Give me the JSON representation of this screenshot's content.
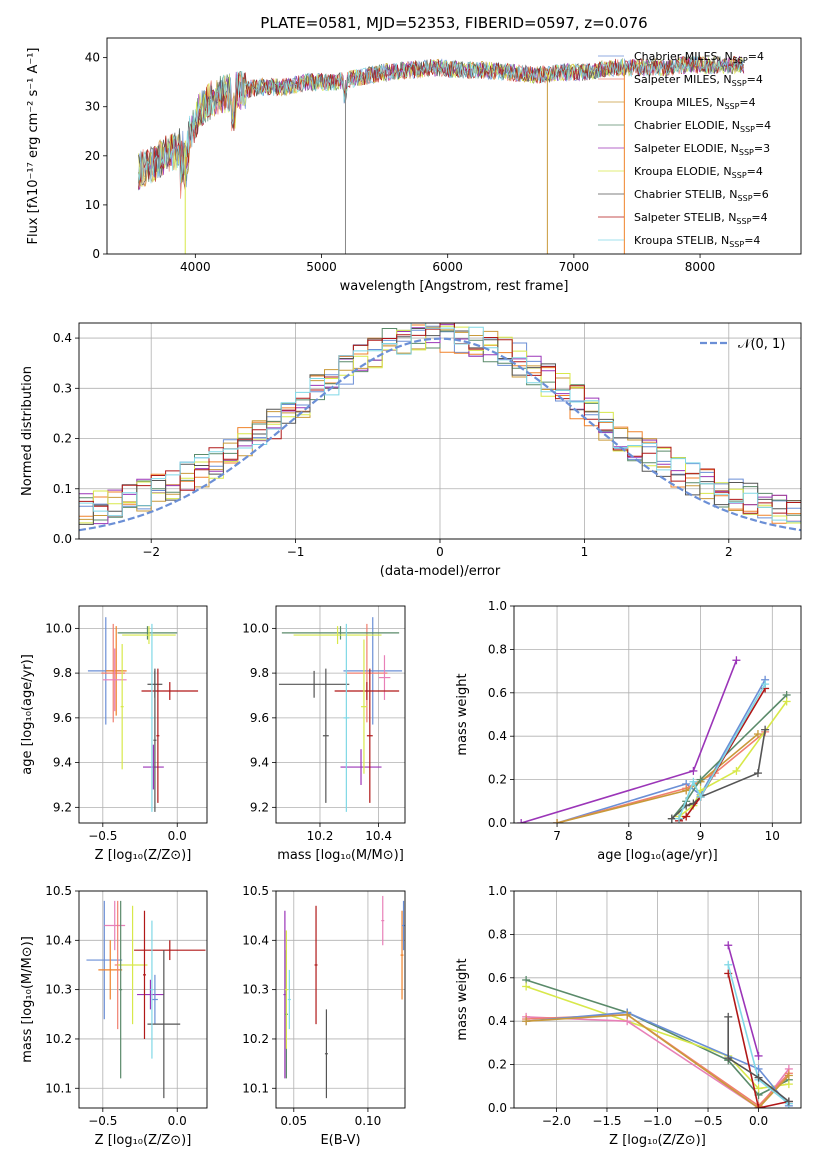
{
  "colors": {
    "Chabrier MILES": "#6b8fd6",
    "Salpeter MILES": "#f07f6f",
    "Kroupa MILES": "#c99a3a",
    "Chabrier ELODIE": "#5a8a6a",
    "Salpeter ELODIE": "#9b35b8",
    "Kroupa ELODIE": "#d8e84a",
    "Chabrier STELIB": "#555555",
    "Salpeter STELIB": "#b01818",
    "Kroupa STELIB": "#80d8e6",
    "normal_fit": "#6b8fd6",
    "orange_extra": "#f0822a",
    "pink_extra": "#e880b8"
  },
  "chart_data": [
    {
      "id": "spectrum",
      "type": "line",
      "title": "PLATE=0581, MJD=52353, FIBERID=0597, z=0.076",
      "xlabel": "wavelength [Angstrom, rest frame]",
      "ylabel": "Flux [fλ10⁻¹⁷ erg cm⁻² s⁻¹ A⁻¹]",
      "xlim": [
        3300,
        8800
      ],
      "ylim": [
        0,
        44
      ],
      "xticks": [
        "4000",
        "5000",
        "6000",
        "7000",
        "8000"
      ],
      "yticks": [
        "0",
        "10",
        "20",
        "30",
        "40"
      ],
      "grid": false,
      "legend_position": "top-right",
      "series": [
        {
          "name": "Chabrier MILES, N",
          "sub": "SSP",
          "suffix": "=4"
        },
        {
          "name": "Salpeter MILES, N",
          "sub": "SSP",
          "suffix": "=4"
        },
        {
          "name": "Kroupa MILES, N",
          "sub": "SSP",
          "suffix": "=4"
        },
        {
          "name": "Chabrier ELODIE, N",
          "sub": "SSP",
          "suffix": "=4"
        },
        {
          "name": "Salpeter ELODIE, N",
          "sub": "SSP",
          "suffix": "=3"
        },
        {
          "name": "Kroupa ELODIE, N",
          "sub": "SSP",
          "suffix": "=4"
        },
        {
          "name": "Chabrier STELIB, N",
          "sub": "SSP",
          "suffix": "=6"
        },
        {
          "name": "Salpeter STELIB, N",
          "sub": "SSP",
          "suffix": "=4"
        },
        {
          "name": "Kroupa STELIB, N",
          "sub": "SSP",
          "suffix": "=4"
        }
      ],
      "continuum": {
        "x": [
          3550,
          3650,
          3750,
          3850,
          3950,
          4050,
          4150,
          4300,
          4500,
          4700,
          4900,
          5100,
          5300,
          5500,
          5700,
          5900,
          6100,
          6300,
          6500,
          6700,
          6900,
          7100,
          7300,
          7500,
          7700,
          7900,
          8100,
          8300
        ],
        "y": [
          17,
          18,
          20,
          21,
          24,
          30,
          32,
          33,
          34,
          34,
          35,
          35,
          36,
          37,
          37.5,
          38,
          37.5,
          37.5,
          37,
          36.5,
          37,
          37,
          38,
          38,
          38,
          38.5,
          38.5,
          38.5
        ]
      },
      "spikes": [
        {
          "x": 3920,
          "y": 0,
          "color": "#d8e84a"
        },
        {
          "x": 5190,
          "y": 0,
          "color": "#888888"
        },
        {
          "x": 6790,
          "y": 0,
          "color": "#c99a3a"
        },
        {
          "x": 7400,
          "y": 0,
          "color": "#f0822a"
        }
      ]
    },
    {
      "id": "residuals",
      "type": "step",
      "xlabel": "(data-model)/error",
      "ylabel": "Normed distribution",
      "xlim": [
        -2.5,
        2.5
      ],
      "ylim": [
        0,
        0.43
      ],
      "xticks": [
        "−2",
        "−1",
        "0",
        "1",
        "2"
      ],
      "yticks": [
        "0.0",
        "0.1",
        "0.2",
        "0.3",
        "0.4"
      ],
      "grid": true,
      "legend_position": "top-right",
      "fit_label": "𝒩(0, 1)",
      "bin_width": 0.1
    },
    {
      "id": "age_vs_Z",
      "type": "errorbar",
      "xlabel": "Z [log₁₀(Z/Z⊙)]",
      "ylabel": "age  [log₁₀(age/yr)]",
      "xlim": [
        -0.66,
        0.2
      ],
      "ylim": [
        9.13,
        10.1
      ],
      "xticks": [
        "−0.5",
        "0.0"
      ],
      "yticks": [
        "9.2",
        "9.4",
        "9.6",
        "9.8",
        "10.0"
      ],
      "grid": true,
      "points": [
        {
          "x": -0.48,
          "y": 9.81,
          "xerr": 0.12,
          "yerr": 0.24,
          "c": "#6b8fd6"
        },
        {
          "x": -0.43,
          "y": 9.8,
          "xerr": 0.08,
          "yerr": 0.22,
          "c": "#f07f6f"
        },
        {
          "x": -0.41,
          "y": 9.81,
          "xerr": 0.07,
          "yerr": 0.2,
          "c": "#f0822a"
        },
        {
          "x": -0.42,
          "y": 9.77,
          "xerr": 0.08,
          "yerr": 0.14,
          "c": "#e880b8"
        },
        {
          "x": -0.2,
          "y": 9.98,
          "xerr": 0.2,
          "yerr": 0.03,
          "c": "#5a8a6a"
        },
        {
          "x": -0.19,
          "y": 9.97,
          "xerr": 0.18,
          "yerr": 0.04,
          "c": "#d8e84a"
        },
        {
          "x": -0.16,
          "y": 9.38,
          "xerr": 0.07,
          "yerr": 0.1,
          "c": "#9b35b8"
        },
        {
          "x": -0.15,
          "y": 9.75,
          "xerr": 0.05,
          "yerr": 0.06,
          "c": "#555555"
        },
        {
          "x": -0.05,
          "y": 9.72,
          "xerr": 0.19,
          "yerr": 0.04,
          "c": "#b01818"
        },
        {
          "x": -0.15,
          "y": 9.5,
          "xerr": 0.01,
          "yerr": 0.32,
          "c": "#555555"
        },
        {
          "x": -0.13,
          "y": 9.52,
          "xerr": 0.01,
          "yerr": 0.3,
          "c": "#b01818"
        },
        {
          "x": -0.17,
          "y": 9.6,
          "xerr": 0.01,
          "yerr": 0.42,
          "c": "#80d8e6"
        },
        {
          "x": -0.37,
          "y": 9.65,
          "xerr": 0.01,
          "yerr": 0.28,
          "c": "#d8e84a"
        }
      ]
    },
    {
      "id": "age_vs_mass",
      "type": "errorbar",
      "xlabel": "mass [log₁₀(M/M⊙)]",
      "ylabel": "",
      "xlim": [
        10.05,
        10.49
      ],
      "ylim": [
        9.13,
        10.1
      ],
      "xticks": [
        "10.2",
        "10.4"
      ],
      "yticks": [
        "9.2",
        "9.4",
        "9.6",
        "9.8",
        "10.0"
      ],
      "grid": true,
      "points": [
        {
          "x": 10.38,
          "y": 9.81,
          "xerr": 0.1,
          "yerr": 0.24,
          "c": "#6b8fd6"
        },
        {
          "x": 10.36,
          "y": 9.8,
          "xerr": 0.07,
          "yerr": 0.22,
          "c": "#f07f6f"
        },
        {
          "x": 10.42,
          "y": 9.78,
          "xerr": 0.02,
          "yerr": 0.1,
          "c": "#e880b8"
        },
        {
          "x": 10.27,
          "y": 9.98,
          "xerr": 0.2,
          "yerr": 0.03,
          "c": "#5a8a6a"
        },
        {
          "x": 10.26,
          "y": 9.97,
          "xerr": 0.15,
          "yerr": 0.04,
          "c": "#d8e84a"
        },
        {
          "x": 10.34,
          "y": 9.38,
          "xerr": 0.07,
          "yerr": 0.08,
          "c": "#9b35b8"
        },
        {
          "x": 10.18,
          "y": 9.75,
          "xerr": 0.12,
          "yerr": 0.06,
          "c": "#555555"
        },
        {
          "x": 10.36,
          "y": 9.72,
          "xerr": 0.11,
          "yerr": 0.04,
          "c": "#b01818"
        },
        {
          "x": 10.22,
          "y": 9.52,
          "xerr": 0.01,
          "yerr": 0.3,
          "c": "#555555"
        },
        {
          "x": 10.37,
          "y": 9.52,
          "xerr": 0.01,
          "yerr": 0.3,
          "c": "#b01818"
        },
        {
          "x": 10.29,
          "y": 9.6,
          "xerr": 0.01,
          "yerr": 0.42,
          "c": "#80d8e6"
        },
        {
          "x": 10.35,
          "y": 9.65,
          "xerr": 0.01,
          "yerr": 0.3,
          "c": "#d8e84a"
        }
      ]
    },
    {
      "id": "weight_vs_age",
      "type": "line",
      "xlabel": "age  [log₁₀(age/yr)]",
      "ylabel": "mass weight",
      "xlim": [
        6.4,
        10.4
      ],
      "ylim": [
        0,
        1
      ],
      "xticks": [
        "7",
        "8",
        "9",
        "10"
      ],
      "yticks": [
        "0.0",
        "0.2",
        "0.4",
        "0.6",
        "0.8",
        "1.0"
      ],
      "grid": true,
      "series": [
        {
          "c": "#6b8fd6",
          "x": [
            7.0,
            8.8,
            9.0,
            9.9
          ],
          "y": [
            0.0,
            0.18,
            0.13,
            0.66
          ]
        },
        {
          "c": "#f07f6f",
          "x": [
            7.0,
            8.8,
            9.2,
            9.9
          ],
          "y": [
            0.0,
            0.16,
            0.23,
            0.42
          ]
        },
        {
          "c": "#c99a3a",
          "x": [
            7.0,
            8.8,
            9.0,
            9.8
          ],
          "y": [
            0.0,
            0.15,
            0.19,
            0.41
          ]
        },
        {
          "c": "#9b35b8",
          "x": [
            6.5,
            8.9,
            9.5
          ],
          "y": [
            0.0,
            0.24,
            0.75
          ]
        },
        {
          "c": "#5a8a6a",
          "x": [
            8.6,
            8.8,
            9.0,
            10.2
          ],
          "y": [
            0.02,
            0.1,
            0.2,
            0.59
          ]
        },
        {
          "c": "#d8e84a",
          "x": [
            8.7,
            8.9,
            9.0,
            9.5,
            10.2
          ],
          "y": [
            0.03,
            0.08,
            0.15,
            0.24,
            0.56
          ]
        },
        {
          "c": "#555555",
          "x": [
            8.6,
            8.8,
            8.9,
            9.0,
            9.8,
            9.9
          ],
          "y": [
            0.02,
            0.08,
            0.09,
            0.12,
            0.23,
            0.43
          ]
        },
        {
          "c": "#b01818",
          "x": [
            8.7,
            8.8,
            9.0,
            9.9
          ],
          "y": [
            0.01,
            0.03,
            0.12,
            0.62
          ]
        },
        {
          "c": "#80d8e6",
          "x": [
            8.7,
            8.9,
            9.0,
            9.9
          ],
          "y": [
            0.02,
            0.19,
            0.12,
            0.64
          ]
        }
      ]
    },
    {
      "id": "mass_vs_Z",
      "type": "errorbar",
      "xlabel": "Z [log₁₀(Z/Z⊙)]",
      "ylabel": "mass [log₁₀(M/M⊙)]",
      "xlim": [
        -0.66,
        0.2
      ],
      "ylim": [
        10.06,
        10.5
      ],
      "xticks": [
        "−0.5",
        "0.0"
      ],
      "yticks": [
        "10.1",
        "10.2",
        "10.3",
        "10.4",
        "10.5"
      ],
      "grid": true,
      "points": [
        {
          "x": -0.49,
          "y": 10.36,
          "xerr": 0.12,
          "yerr": 0.12,
          "c": "#6b8fd6"
        },
        {
          "x": -0.45,
          "y": 10.34,
          "xerr": 0.08,
          "yerr": 0.06,
          "c": "#f0822a"
        },
        {
          "x": -0.42,
          "y": 10.43,
          "xerr": 0.07,
          "yerr": 0.05,
          "c": "#e880b8"
        },
        {
          "x": -0.4,
          "y": 10.35,
          "xerr": 0.02,
          "yerr": 0.13,
          "c": "#f07f6f"
        },
        {
          "x": -0.3,
          "y": 10.35,
          "xerr": 0.1,
          "yerr": 0.12,
          "c": "#d8e84a"
        },
        {
          "x": -0.38,
          "y": 10.3,
          "xerr": 0.01,
          "yerr": 0.18,
          "c": "#5a8a6a"
        },
        {
          "x": -0.18,
          "y": 10.29,
          "xerr": 0.09,
          "yerr": 0.03,
          "c": "#9b35b8"
        },
        {
          "x": -0.15,
          "y": 10.28,
          "xerr": 0.02,
          "yerr": 0.05,
          "c": "#6b8fd6"
        },
        {
          "x": -0.05,
          "y": 10.38,
          "xerr": 0.24,
          "yerr": 0.02,
          "c": "#b01818"
        },
        {
          "x": -0.09,
          "y": 10.23,
          "xerr": 0.11,
          "yerr": 0.15,
          "c": "#555555"
        },
        {
          "x": -0.22,
          "y": 10.33,
          "xerr": 0.01,
          "yerr": 0.13,
          "c": "#b01818"
        },
        {
          "x": -0.17,
          "y": 10.3,
          "xerr": 0.01,
          "yerr": 0.14,
          "c": "#80d8e6"
        }
      ]
    },
    {
      "id": "mass_vs_ebv",
      "type": "errorbar",
      "xlabel": "E(B-V)",
      "ylabel": "",
      "xlim": [
        0.038,
        0.125
      ],
      "ylim": [
        10.06,
        10.5
      ],
      "xticks": [
        "0.05",
        "0.10"
      ],
      "yticks": [
        "10.1",
        "10.2",
        "10.3",
        "10.4",
        "10.5"
      ],
      "grid": true,
      "points": [
        {
          "x": 0.044,
          "y": 10.29,
          "xerr": 0.001,
          "yerr": 0.17,
          "c": "#9b35b8"
        },
        {
          "x": 0.045,
          "y": 10.25,
          "xerr": 0.001,
          "yerr": 0.13,
          "c": "#5a8a6a"
        },
        {
          "x": 0.045,
          "y": 10.3,
          "xerr": 0.001,
          "yerr": 0.12,
          "c": "#d8e84a"
        },
        {
          "x": 0.047,
          "y": 10.28,
          "xerr": 0.001,
          "yerr": 0.06,
          "c": "#80d8e6"
        },
        {
          "x": 0.065,
          "y": 10.35,
          "xerr": 0.001,
          "yerr": 0.12,
          "c": "#b01818"
        },
        {
          "x": 0.072,
          "y": 10.17,
          "xerr": 0.001,
          "yerr": 0.09,
          "c": "#555555"
        },
        {
          "x": 0.11,
          "y": 10.44,
          "xerr": 0.001,
          "yerr": 0.05,
          "c": "#e880b8"
        },
        {
          "x": 0.123,
          "y": 10.37,
          "xerr": 0.001,
          "yerr": 0.09,
          "c": "#f0822a"
        },
        {
          "x": 0.124,
          "y": 10.43,
          "xerr": 0.001,
          "yerr": 0.05,
          "c": "#6b8fd6"
        }
      ]
    },
    {
      "id": "weight_vs_Z",
      "type": "line",
      "xlabel": "Z [log₁₀(Z/Z⊙)]",
      "ylabel": "mass weight",
      "xlim": [
        -2.42,
        0.42
      ],
      "ylim": [
        0,
        1
      ],
      "xticks": [
        "−2.0",
        "−1.5",
        "−1.0",
        "−0.5",
        "0.0"
      ],
      "yticks": [
        "0.0",
        "0.2",
        "0.4",
        "0.6",
        "0.8",
        "1.0"
      ],
      "grid": true,
      "series": [
        {
          "c": "#5a8a6a",
          "x": [
            -2.3,
            -1.3,
            -0.3,
            0.0,
            0.3
          ],
          "y": [
            0.59,
            0.44,
            0.22,
            0.06,
            0.13
          ]
        },
        {
          "c": "#d8e84a",
          "x": [
            -2.3,
            -0.3,
            0.0,
            0.3
          ],
          "y": [
            0.56,
            0.24,
            0.09,
            0.11
          ]
        },
        {
          "c": "#e880b8",
          "x": [
            -2.3,
            -1.3,
            0.0,
            0.3
          ],
          "y": [
            0.42,
            0.4,
            0.0,
            0.18
          ]
        },
        {
          "c": "#f07f6f",
          "x": [
            -2.3,
            -1.3,
            0.0,
            0.3
          ],
          "y": [
            0.41,
            0.43,
            0.01,
            0.16
          ]
        },
        {
          "c": "#6b8fd6",
          "x": [
            -2.3,
            -1.3,
            0.0,
            0.3
          ],
          "y": [
            0.4,
            0.44,
            0.18,
            0.01
          ]
        },
        {
          "c": "#c99a3a",
          "x": [
            -2.3,
            -1.3,
            0.0,
            0.3
          ],
          "y": [
            0.4,
            0.43,
            0.0,
            0.15
          ]
        },
        {
          "c": "#9b35b8",
          "x": [
            -0.3,
            0.0
          ],
          "y": [
            0.75,
            0.24
          ]
        },
        {
          "c": "#b01818",
          "x": [
            -0.3,
            0.0,
            0.3
          ],
          "y": [
            0.62,
            0.0,
            0.03
          ]
        },
        {
          "c": "#80d8e6",
          "x": [
            -0.3,
            0.0,
            0.3
          ],
          "y": [
            0.66,
            0.13,
            0.02
          ]
        },
        {
          "c": "#555555",
          "x": [
            -0.3,
            -0.3,
            0.0,
            0.3
          ],
          "y": [
            0.42,
            0.23,
            0.14,
            0.03
          ]
        }
      ]
    }
  ]
}
